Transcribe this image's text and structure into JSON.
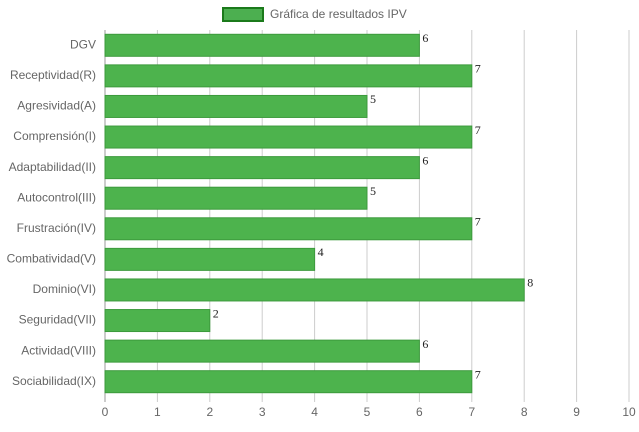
{
  "chart_data": {
    "type": "hbar",
    "legend": "Gráfica de resultados IPV",
    "categories": [
      "DGV",
      "Receptividad(R)",
      "Agresividad(A)",
      "Comprensión(I)",
      "Adaptabilidad(II)",
      "Autocontrol(III)",
      "Frustración(IV)",
      "Combatividad(V)",
      "Dominio(VI)",
      "Seguridad(VII)",
      "Actividad(VIII)",
      "Sociabilidad(IX)"
    ],
    "values": [
      6,
      7,
      5,
      7,
      6,
      5,
      7,
      4,
      8,
      2,
      6,
      7
    ],
    "color": "#4db34d",
    "border_color": "#3c9a3c",
    "xlim": [
      0,
      10
    ],
    "xticks": [
      0,
      1,
      2,
      3,
      4,
      5,
      6,
      7,
      8,
      9,
      10
    ],
    "grid": true,
    "legend_position": "top"
  }
}
